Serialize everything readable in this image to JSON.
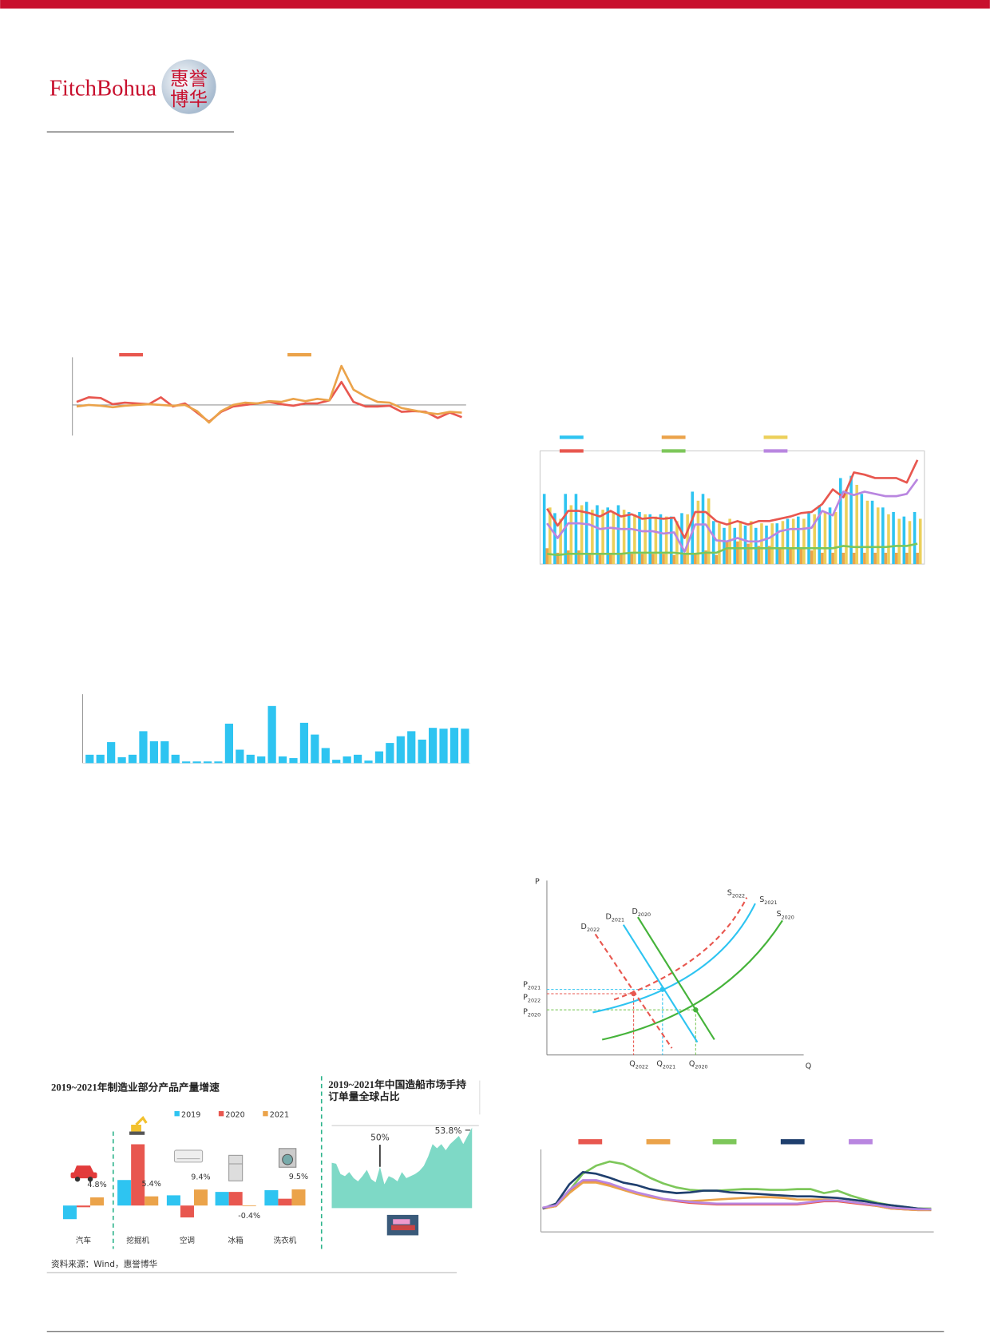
{
  "header": {
    "logo_text": "FitchBohua",
    "emblem": [
      "惠誉",
      "博华"
    ]
  },
  "chart_data": [
    {
      "type": "line",
      "ylim": [
        -4,
        6
      ],
      "series": [
        {
          "color": "#e8574f",
          "values": [
            0.4,
            1,
            0.9,
            0.1,
            0.3,
            0.2,
            0.1,
            1,
            -0.2,
            0.2,
            -1,
            -2.2,
            -0.9,
            -0.2,
            0,
            0.2,
            0.4,
            0.1,
            -0.1,
            0.2,
            0.2,
            0.6,
            3,
            0.4,
            -0.2,
            -0.2,
            -0.1,
            -0.9,
            -0.8,
            -0.9,
            -1.7,
            -1,
            -1.6
          ]
        },
        {
          "color": "#eba34a",
          "values": [
            -0.2,
            0,
            -0.1,
            -0.3,
            -0.1,
            0,
            0.1,
            0,
            -0.1,
            0,
            -0.8,
            -2.3,
            -0.8,
            0,
            0.3,
            0.2,
            0.5,
            0.4,
            0.8,
            0.5,
            0.8,
            0.6,
            5.1,
            2,
            1.1,
            0.4,
            0.3,
            -0.4,
            -0.7,
            -1,
            -1.2,
            -0.9,
            -1
          ]
        }
      ]
    },
    {
      "type": "bar",
      "ylim": [
        0,
        80
      ],
      "color": "#2ec4f1",
      "values": [
        10,
        10,
        25,
        7,
        10,
        38,
        26,
        26,
        10,
        2,
        2,
        2,
        2,
        47,
        16,
        10,
        8,
        68,
        8,
        6,
        48,
        34,
        18,
        4,
        8,
        10,
        3,
        14,
        24,
        32,
        38,
        28,
        42,
        41,
        42,
        41
      ]
    },
    {
      "type": "combo",
      "ylim": [
        0,
        100
      ],
      "series": [
        {
          "type": "bar",
          "color": "#2ec4f1",
          "values": [
            62,
            45,
            62,
            62,
            55,
            52,
            50,
            52,
            46,
            46,
            44,
            44,
            42,
            45,
            64,
            62,
            38,
            32,
            32,
            34,
            32,
            34,
            36,
            40,
            42,
            46,
            52,
            50,
            76,
            78,
            62,
            56,
            50,
            46,
            42,
            46
          ]
        },
        {
          "type": "bar",
          "color": "#eba34a",
          "values": [
            14,
            10,
            12,
            12,
            10,
            10,
            10,
            10,
            9,
            9,
            9,
            9,
            8,
            9,
            10,
            12,
            8,
            20,
            20,
            18,
            16,
            16,
            14,
            14,
            14,
            12,
            10,
            10,
            10,
            10,
            10,
            10,
            10,
            10,
            10,
            10
          ]
        },
        {
          "type": "bar",
          "color": "#ecd05a",
          "values": [
            50,
            40,
            52,
            52,
            48,
            48,
            46,
            48,
            44,
            44,
            42,
            42,
            38,
            44,
            56,
            58,
            36,
            40,
            38,
            38,
            36,
            36,
            38,
            40,
            40,
            44,
            46,
            46,
            66,
            70,
            56,
            50,
            44,
            40,
            38,
            40
          ]
        },
        {
          "type": "line",
          "color": "#e8574f",
          "values": [
            49,
            34,
            47,
            47,
            45,
            42,
            47,
            42,
            44,
            40,
            41,
            40,
            41,
            23,
            46,
            46,
            38,
            35,
            38,
            35,
            38,
            38,
            40,
            42,
            45,
            46,
            53,
            66,
            59,
            81,
            79,
            76,
            76,
            76,
            72,
            92
          ]
        },
        {
          "type": "line",
          "color": "#7dc75a",
          "values": [
            9,
            8,
            9,
            9,
            9,
            9,
            9,
            9,
            10,
            10,
            10,
            10,
            10,
            9,
            9,
            10,
            10,
            14,
            14,
            14,
            14,
            14,
            14,
            14,
            14,
            14,
            14,
            14,
            16,
            15,
            15,
            15,
            15,
            16,
            16,
            18
          ]
        },
        {
          "type": "line",
          "color": "#b986e0",
          "values": [
            36,
            23,
            36,
            36,
            35,
            31,
            32,
            31,
            31,
            29,
            29,
            27,
            28,
            11,
            35,
            35,
            21,
            20,
            23,
            20,
            20,
            23,
            29,
            31,
            31,
            32,
            47,
            43,
            64,
            61,
            64,
            62,
            60,
            60,
            62,
            75
          ]
        }
      ]
    },
    {
      "type": "grouped_bar",
      "title": "2019~2021年制造业部分产品产量增速",
      "source": "资料来源：Wind，惠誉博华",
      "categories": [
        "汽车",
        "挖掘机",
        "空调",
        "冰箱",
        "洗衣机"
      ],
      "ylim": [
        -10,
        40
      ],
      "series": [
        {
          "name": "2019",
          "color": "#2ec4f1",
          "values": [
            -8,
            15,
            6,
            8,
            9
          ]
        },
        {
          "name": "2020",
          "color": "#e8574f",
          "values": [
            -1,
            36,
            -7,
            8,
            4
          ]
        },
        {
          "name": "2021",
          "color": "#eba34a",
          "values": [
            4.8,
            5.4,
            9.4,
            -0.4,
            9.5
          ],
          "value_labels": [
            "4.8%",
            "5.4%",
            "9.4%",
            "-0.4%",
            "9.5%"
          ]
        }
      ]
    },
    {
      "type": "area",
      "title_lines": [
        "2019~2021年中国造船市场手持",
        "订单量全球占比"
      ],
      "ylim": [
        46,
        54
      ],
      "color": "#7ed9c6",
      "values": [
        50.4,
        50.3,
        49.3,
        49.1,
        49.5,
        48.9,
        48.6,
        49.1,
        49.7,
        48.8,
        48.5,
        50,
        48.3,
        49.1,
        48.9,
        48.6,
        49.5,
        48.9,
        49.1,
        49.3,
        49.6,
        50.1,
        51,
        52.2,
        51.8,
        52.2,
        51.6,
        52.2,
        52.6,
        53,
        52.2,
        53,
        53.8
      ],
      "value_labels": [
        null,
        null,
        null,
        null,
        null,
        null,
        null,
        null,
        null,
        null,
        null,
        "50%",
        null,
        null,
        null,
        null,
        null,
        null,
        null,
        null,
        null,
        null,
        null,
        null,
        null,
        null,
        null,
        null,
        null,
        null,
        null,
        null,
        "53.8%"
      ]
    },
    {
      "type": "line",
      "ylim": [
        0,
        100
      ],
      "series": [
        {
          "color": "#e8574f",
          "values": [
            29,
            32,
            51,
            63,
            63,
            59,
            53,
            48,
            44,
            40,
            38,
            36,
            35,
            34,
            34,
            34,
            34,
            34,
            34,
            34,
            36,
            38,
            38,
            36,
            34,
            32,
            29,
            28,
            27,
            27
          ]
        },
        {
          "color": "#eba34a",
          "values": [
            29,
            32,
            48,
            61,
            61,
            57,
            52,
            47,
            43,
            40,
            39,
            38,
            39,
            40,
            41,
            42,
            43,
            43,
            42,
            40,
            40,
            40,
            39,
            37,
            35,
            32,
            29,
            28,
            27,
            27
          ]
        },
        {
          "color": "#7dc75a",
          "values": [
            29,
            35,
            51,
            72,
            82,
            87,
            84,
            76,
            67,
            60,
            55,
            52,
            51,
            51,
            52,
            53,
            53,
            52,
            52,
            53,
            53,
            48,
            51,
            45,
            40,
            36,
            33,
            31,
            29,
            29
          ]
        },
        {
          "color": "#1f3f6e",
          "values": [
            29,
            35,
            59,
            74,
            72,
            67,
            61,
            58,
            53,
            50,
            48,
            49,
            51,
            51,
            49,
            48,
            47,
            46,
            45,
            44,
            44,
            43,
            42,
            40,
            38,
            35,
            33,
            31,
            29,
            28
          ]
        },
        {
          "color": "#b986e0",
          "values": [
            30,
            33,
            52,
            64,
            64,
            60,
            54,
            49,
            45,
            41,
            39,
            37,
            36,
            35,
            35,
            35,
            35,
            35,
            35,
            35,
            37,
            39,
            39,
            37,
            35,
            33,
            30,
            29,
            28,
            28
          ]
        }
      ]
    }
  ],
  "diagram": {
    "p": "P",
    "q": "Q",
    "labels": [
      {
        "symbol": "S",
        "sub": "2022"
      },
      {
        "symbol": "S",
        "sub": "2021"
      },
      {
        "symbol": "S",
        "sub": "2020"
      },
      {
        "symbol": "D",
        "sub": "2022"
      },
      {
        "symbol": "D",
        "sub": "2021"
      },
      {
        "symbol": "D",
        "sub": "2020"
      },
      {
        "symbol": "P",
        "sub": "2021"
      },
      {
        "symbol": "P",
        "sub": "2022"
      },
      {
        "symbol": "P",
        "sub": "2020"
      },
      {
        "symbol": "Q",
        "sub": "2022"
      },
      {
        "symbol": "Q",
        "sub": "2021"
      },
      {
        "symbol": "Q",
        "sub": "2020"
      }
    ]
  }
}
